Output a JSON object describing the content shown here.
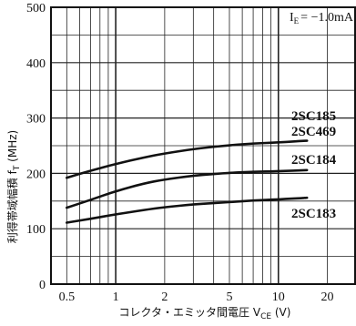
{
  "chart_data": {
    "type": "line",
    "title": "",
    "annotation": "I_E = −1.0mA",
    "annotation_main": "I",
    "annotation_sub": "E",
    "annotation_rest": "= −1.0mA",
    "xlabel_main": "コレクタ・エミッタ間電圧 V",
    "xlabel_sub": "CE",
    "xlabel_unit": " (V)",
    "ylabel_main": "利得帯域幅積 f",
    "ylabel_sub": "T",
    "ylabel_unit": " (MHz)",
    "x_scale": "log",
    "xlim": [
      0.4,
      30
    ],
    "ylim": [
      0,
      500
    ],
    "x_ticks": [
      {
        "v": 0.5,
        "t": "0.5"
      },
      {
        "v": 1,
        "t": "1"
      },
      {
        "v": 2,
        "t": "2"
      },
      {
        "v": 5,
        "t": "5"
      },
      {
        "v": 10,
        "t": "10"
      },
      {
        "v": 20,
        "t": "20"
      }
    ],
    "y_ticks": [
      0,
      100,
      200,
      300,
      400,
      500
    ],
    "grid": true,
    "series": [
      {
        "name": "2SC185_2SC469",
        "label_lines": [
          "2SC185",
          "2SC469"
        ],
        "x": [
          0.5,
          0.7,
          1,
          1.5,
          2,
          3,
          5,
          7,
          10,
          15
        ],
        "y": [
          192,
          205,
          217,
          229,
          236,
          244,
          251,
          254,
          256,
          259
        ]
      },
      {
        "name": "2SC184",
        "label_lines": [
          "2SC184"
        ],
        "x": [
          0.5,
          0.7,
          1,
          1.5,
          2,
          3,
          5,
          7,
          10,
          15
        ],
        "y": [
          138,
          152,
          168,
          182,
          189,
          196,
          201,
          203,
          204,
          206
        ]
      },
      {
        "name": "2SC183",
        "label_lines": [
          "2SC183"
        ],
        "x": [
          0.5,
          0.7,
          1,
          1.5,
          2,
          3,
          5,
          7,
          10,
          15
        ],
        "y": [
          111,
          118,
          126,
          134,
          139,
          144,
          148,
          151,
          153,
          156
        ]
      }
    ]
  }
}
